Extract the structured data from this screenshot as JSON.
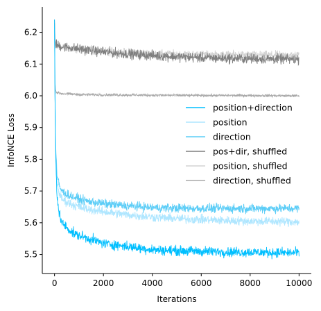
{
  "chart_data": {
    "type": "line",
    "xlabel": "Iterations",
    "ylabel": "InfoNCE Loss",
    "xlim": [
      -500,
      10500
    ],
    "ylim": [
      5.44,
      6.28
    ],
    "xticks": [
      0,
      2000,
      4000,
      6000,
      8000,
      10000
    ],
    "yticks": [
      5.5,
      5.6,
      5.7,
      5.8,
      5.9,
      6.0,
      6.1,
      6.2
    ],
    "grid": false,
    "legend_position": "center-right",
    "series": [
      {
        "name": "position+direction",
        "color": "#00bfff",
        "noise": 0.011,
        "x": [
          0,
          20,
          50,
          100,
          200,
          300,
          500,
          800,
          1200,
          2000,
          3000,
          4000,
          5000,
          6000,
          7000,
          8000,
          9000,
          10000
        ],
        "y": [
          6.24,
          6.0,
          5.8,
          5.68,
          5.63,
          5.6,
          5.585,
          5.565,
          5.555,
          5.535,
          5.525,
          5.515,
          5.512,
          5.51,
          5.508,
          5.507,
          5.506,
          5.505
        ]
      },
      {
        "name": "position",
        "color": "#aee6ff",
        "noise": 0.01,
        "x": [
          0,
          20,
          50,
          100,
          200,
          300,
          500,
          800,
          1200,
          2000,
          3000,
          4000,
          5000,
          6000,
          7000,
          8000,
          9000,
          10000
        ],
        "y": [
          6.22,
          6.0,
          5.82,
          5.73,
          5.69,
          5.675,
          5.665,
          5.655,
          5.645,
          5.635,
          5.625,
          5.618,
          5.613,
          5.61,
          5.607,
          5.605,
          5.604,
          5.603
        ]
      },
      {
        "name": "direction",
        "color": "#5ccdf7",
        "noise": 0.01,
        "x": [
          0,
          20,
          50,
          100,
          200,
          300,
          500,
          800,
          1200,
          2000,
          3000,
          4000,
          5000,
          6000,
          7000,
          8000,
          9000,
          10000
        ],
        "y": [
          6.22,
          6.0,
          5.84,
          5.75,
          5.715,
          5.7,
          5.69,
          5.68,
          5.67,
          5.66,
          5.653,
          5.648,
          5.646,
          5.645,
          5.645,
          5.645,
          5.645,
          5.645
        ]
      },
      {
        "name": "pos+dir, shuffled",
        "color": "#7f7f7f",
        "noise": 0.011,
        "x": [
          0,
          20,
          50,
          100,
          300,
          1000,
          2000,
          3000,
          4000,
          5000,
          6000,
          7000,
          8000,
          9000,
          10000
        ],
        "y": [
          6.24,
          6.18,
          6.165,
          6.16,
          6.155,
          6.148,
          6.138,
          6.132,
          6.127,
          6.123,
          6.12,
          6.118,
          6.117,
          6.116,
          6.115
        ]
      },
      {
        "name": "position, shuffled",
        "color": "#d3d3d3",
        "noise": 0.009,
        "x": [
          0,
          20,
          50,
          100,
          300,
          1000,
          2000,
          3000,
          4000,
          5000,
          6000,
          7000,
          8000,
          9000,
          10000
        ],
        "y": [
          6.23,
          6.18,
          6.16,
          6.155,
          6.152,
          6.146,
          6.14,
          6.136,
          6.133,
          6.131,
          6.13,
          6.129,
          6.129,
          6.128,
          6.128
        ]
      },
      {
        "name": "direction, shuffled",
        "color": "#a9a9a9",
        "noise": 0.003,
        "x": [
          0,
          20,
          50,
          100,
          300,
          1000,
          2000,
          4000,
          6000,
          8000,
          10000
        ],
        "y": [
          6.23,
          6.04,
          6.015,
          6.01,
          6.007,
          6.004,
          6.003,
          6.002,
          6.001,
          6.001,
          6.0
        ]
      }
    ]
  }
}
